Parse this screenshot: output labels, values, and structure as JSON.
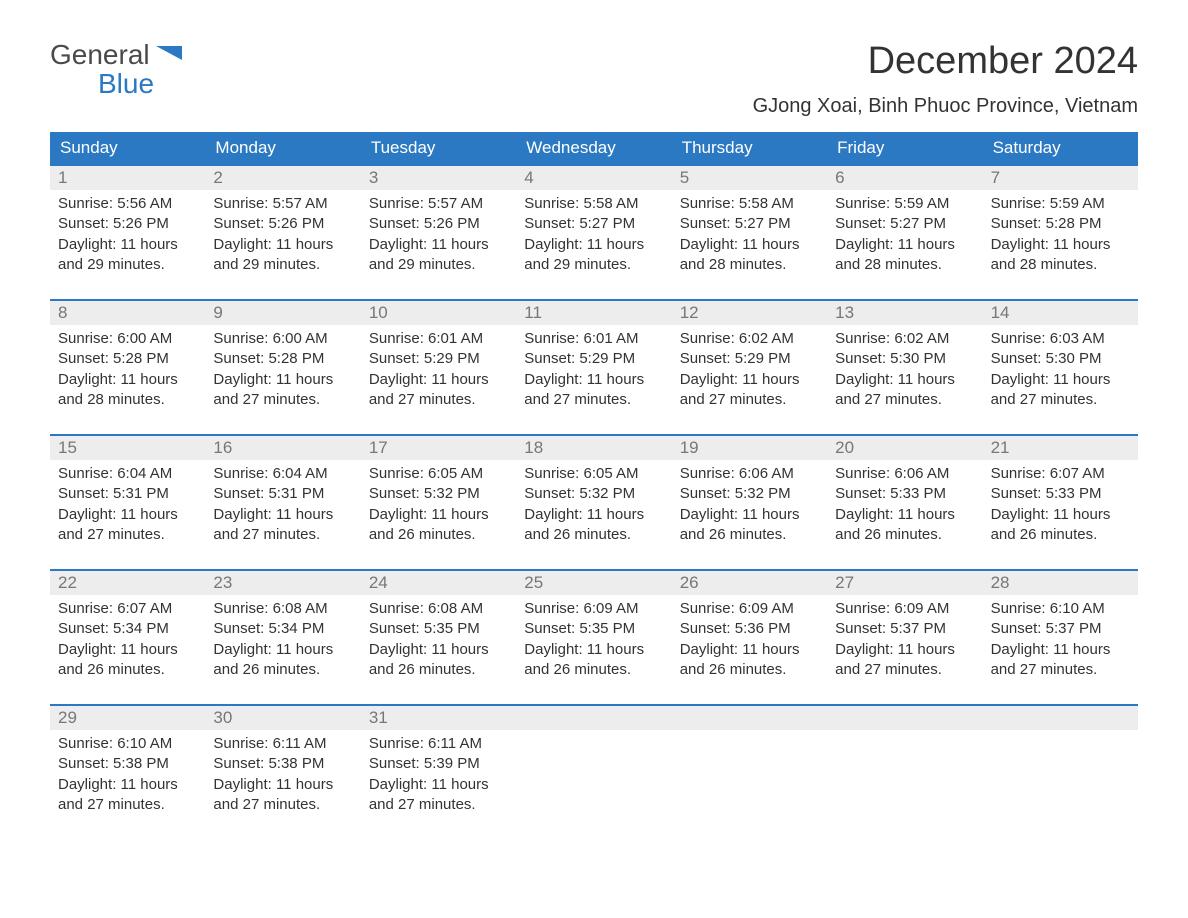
{
  "logo": {
    "text_general": "General",
    "text_blue": "Blue"
  },
  "header": {
    "month_title": "December 2024",
    "location": "GJong Xoai, Binh Phuoc Province, Vietnam"
  },
  "colors": {
    "header_bg": "#2b79c2",
    "header_text": "#ffffff",
    "daynum_bg": "#ededed",
    "daynum_text": "#777777",
    "body_text": "#333333",
    "week_border": "#2b79c2",
    "page_bg": "#ffffff"
  },
  "layout": {
    "columns": 7,
    "cell_font_size_pt": 11,
    "header_font_size_pt": 13
  },
  "weekdays": [
    "Sunday",
    "Monday",
    "Tuesday",
    "Wednesday",
    "Thursday",
    "Friday",
    "Saturday"
  ],
  "labels": {
    "sunrise": "Sunrise:",
    "sunset": "Sunset:",
    "daylight": "Daylight:"
  },
  "days": [
    {
      "n": 1,
      "sunrise": "5:56 AM",
      "sunset": "5:26 PM",
      "daylight": "11 hours and 29 minutes."
    },
    {
      "n": 2,
      "sunrise": "5:57 AM",
      "sunset": "5:26 PM",
      "daylight": "11 hours and 29 minutes."
    },
    {
      "n": 3,
      "sunrise": "5:57 AM",
      "sunset": "5:26 PM",
      "daylight": "11 hours and 29 minutes."
    },
    {
      "n": 4,
      "sunrise": "5:58 AM",
      "sunset": "5:27 PM",
      "daylight": "11 hours and 29 minutes."
    },
    {
      "n": 5,
      "sunrise": "5:58 AM",
      "sunset": "5:27 PM",
      "daylight": "11 hours and 28 minutes."
    },
    {
      "n": 6,
      "sunrise": "5:59 AM",
      "sunset": "5:27 PM",
      "daylight": "11 hours and 28 minutes."
    },
    {
      "n": 7,
      "sunrise": "5:59 AM",
      "sunset": "5:28 PM",
      "daylight": "11 hours and 28 minutes."
    },
    {
      "n": 8,
      "sunrise": "6:00 AM",
      "sunset": "5:28 PM",
      "daylight": "11 hours and 28 minutes."
    },
    {
      "n": 9,
      "sunrise": "6:00 AM",
      "sunset": "5:28 PM",
      "daylight": "11 hours and 27 minutes."
    },
    {
      "n": 10,
      "sunrise": "6:01 AM",
      "sunset": "5:29 PM",
      "daylight": "11 hours and 27 minutes."
    },
    {
      "n": 11,
      "sunrise": "6:01 AM",
      "sunset": "5:29 PM",
      "daylight": "11 hours and 27 minutes."
    },
    {
      "n": 12,
      "sunrise": "6:02 AM",
      "sunset": "5:29 PM",
      "daylight": "11 hours and 27 minutes."
    },
    {
      "n": 13,
      "sunrise": "6:02 AM",
      "sunset": "5:30 PM",
      "daylight": "11 hours and 27 minutes."
    },
    {
      "n": 14,
      "sunrise": "6:03 AM",
      "sunset": "5:30 PM",
      "daylight": "11 hours and 27 minutes."
    },
    {
      "n": 15,
      "sunrise": "6:04 AM",
      "sunset": "5:31 PM",
      "daylight": "11 hours and 27 minutes."
    },
    {
      "n": 16,
      "sunrise": "6:04 AM",
      "sunset": "5:31 PM",
      "daylight": "11 hours and 27 minutes."
    },
    {
      "n": 17,
      "sunrise": "6:05 AM",
      "sunset": "5:32 PM",
      "daylight": "11 hours and 26 minutes."
    },
    {
      "n": 18,
      "sunrise": "6:05 AM",
      "sunset": "5:32 PM",
      "daylight": "11 hours and 26 minutes."
    },
    {
      "n": 19,
      "sunrise": "6:06 AM",
      "sunset": "5:32 PM",
      "daylight": "11 hours and 26 minutes."
    },
    {
      "n": 20,
      "sunrise": "6:06 AM",
      "sunset": "5:33 PM",
      "daylight": "11 hours and 26 minutes."
    },
    {
      "n": 21,
      "sunrise": "6:07 AM",
      "sunset": "5:33 PM",
      "daylight": "11 hours and 26 minutes."
    },
    {
      "n": 22,
      "sunrise": "6:07 AM",
      "sunset": "5:34 PM",
      "daylight": "11 hours and 26 minutes."
    },
    {
      "n": 23,
      "sunrise": "6:08 AM",
      "sunset": "5:34 PM",
      "daylight": "11 hours and 26 minutes."
    },
    {
      "n": 24,
      "sunrise": "6:08 AM",
      "sunset": "5:35 PM",
      "daylight": "11 hours and 26 minutes."
    },
    {
      "n": 25,
      "sunrise": "6:09 AM",
      "sunset": "5:35 PM",
      "daylight": "11 hours and 26 minutes."
    },
    {
      "n": 26,
      "sunrise": "6:09 AM",
      "sunset": "5:36 PM",
      "daylight": "11 hours and 26 minutes."
    },
    {
      "n": 27,
      "sunrise": "6:09 AM",
      "sunset": "5:37 PM",
      "daylight": "11 hours and 27 minutes."
    },
    {
      "n": 28,
      "sunrise": "6:10 AM",
      "sunset": "5:37 PM",
      "daylight": "11 hours and 27 minutes."
    },
    {
      "n": 29,
      "sunrise": "6:10 AM",
      "sunset": "5:38 PM",
      "daylight": "11 hours and 27 minutes."
    },
    {
      "n": 30,
      "sunrise": "6:11 AM",
      "sunset": "5:38 PM",
      "daylight": "11 hours and 27 minutes."
    },
    {
      "n": 31,
      "sunrise": "6:11 AM",
      "sunset": "5:39 PM",
      "daylight": "11 hours and 27 minutes."
    }
  ],
  "start_weekday_index": 0
}
